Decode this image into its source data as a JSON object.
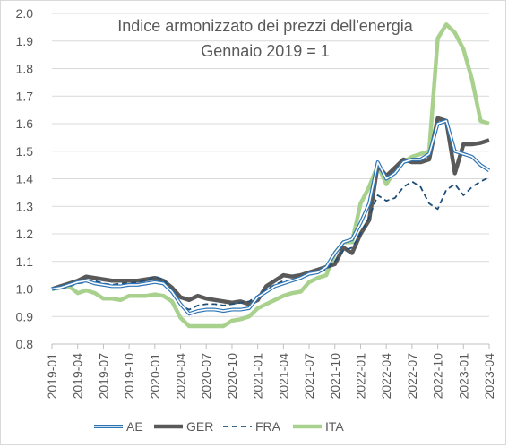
{
  "chart_data": {
    "type": "line",
    "title": "Indice armonizzato dei prezzi dell'energia",
    "subtitle": "Gennaio 2019 = 1",
    "xlabel": "",
    "ylabel": "",
    "ylim": [
      0.8,
      2.0
    ],
    "yticks": [
      "0.8",
      "0.9",
      "1.0",
      "1.1",
      "1.2",
      "1.3",
      "1.4",
      "1.5",
      "1.6",
      "1.7",
      "1.8",
      "1.9",
      "2.0"
    ],
    "x": [
      "2019-01",
      "2019-02",
      "2019-03",
      "2019-04",
      "2019-05",
      "2019-06",
      "2019-07",
      "2019-08",
      "2019-09",
      "2019-10",
      "2019-11",
      "2019-12",
      "2020-01",
      "2020-02",
      "2020-03",
      "2020-04",
      "2020-05",
      "2020-06",
      "2020-07",
      "2020-08",
      "2020-09",
      "2020-10",
      "2020-11",
      "2020-12",
      "2021-01",
      "2021-02",
      "2021-03",
      "2021-04",
      "2021-05",
      "2021-06",
      "2021-07",
      "2021-08",
      "2021-09",
      "2021-10",
      "2021-11",
      "2021-12",
      "2022-01",
      "2022-02",
      "2022-03",
      "2022-04",
      "2022-05",
      "2022-06",
      "2022-07",
      "2022-08",
      "2022-09",
      "2022-10",
      "2022-11",
      "2022-12",
      "2023-01",
      "2023-02",
      "2023-03",
      "2023-04"
    ],
    "xtick_labels": [
      "2019-01",
      "2019-04",
      "2019-07",
      "2019-10",
      "2020-01",
      "2020-04",
      "2020-07",
      "2020-10",
      "2021-01",
      "2021-04",
      "2021-07",
      "2021-10",
      "2022-01",
      "2022-04",
      "2022-07",
      "2022-10",
      "2023-01",
      "2023-04"
    ],
    "grid": true,
    "legend_position": "bottom",
    "series": [
      {
        "name": "AE",
        "color": "#2e75b6",
        "style": "double",
        "values": [
          1.0,
          1.005,
          1.015,
          1.025,
          1.03,
          1.02,
          1.015,
          1.01,
          1.01,
          1.015,
          1.015,
          1.02,
          1.025,
          1.02,
          0.99,
          0.945,
          0.91,
          0.92,
          0.925,
          0.925,
          0.92,
          0.925,
          0.925,
          0.93,
          0.97,
          0.99,
          1.01,
          1.02,
          1.03,
          1.04,
          1.055,
          1.06,
          1.08,
          1.13,
          1.17,
          1.18,
          1.24,
          1.31,
          1.46,
          1.4,
          1.42,
          1.46,
          1.47,
          1.47,
          1.49,
          1.6,
          1.61,
          1.5,
          1.49,
          1.48,
          1.45,
          1.43
        ]
      },
      {
        "name": "GER",
        "color": "#595959",
        "style": "solid",
        "values": [
          1.0,
          1.01,
          1.02,
          1.03,
          1.045,
          1.04,
          1.035,
          1.03,
          1.03,
          1.03,
          1.03,
          1.035,
          1.04,
          1.03,
          1.005,
          0.97,
          0.96,
          0.975,
          0.965,
          0.96,
          0.955,
          0.95,
          0.955,
          0.945,
          0.96,
          1.01,
          1.03,
          1.05,
          1.045,
          1.05,
          1.06,
          1.07,
          1.08,
          1.09,
          1.15,
          1.13,
          1.2,
          1.25,
          1.45,
          1.41,
          1.44,
          1.47,
          1.46,
          1.46,
          1.47,
          1.62,
          1.61,
          1.42,
          1.525,
          1.525,
          1.53,
          1.54
        ]
      },
      {
        "name": "FRA",
        "color": "#1f4e79",
        "style": "dashed",
        "values": [
          1.0,
          1.0,
          1.01,
          1.02,
          1.025,
          1.03,
          1.02,
          1.015,
          1.02,
          1.02,
          1.025,
          1.03,
          1.045,
          1.035,
          0.99,
          0.94,
          0.925,
          0.94,
          0.945,
          0.945,
          0.94,
          0.945,
          0.95,
          0.955,
          0.975,
          1.0,
          1.015,
          1.03,
          1.03,
          1.04,
          1.05,
          1.06,
          1.07,
          1.1,
          1.14,
          1.15,
          1.2,
          1.26,
          1.34,
          1.32,
          1.33,
          1.37,
          1.39,
          1.37,
          1.31,
          1.29,
          1.36,
          1.38,
          1.34,
          1.37,
          1.39,
          1.405
        ]
      },
      {
        "name": "ITA",
        "color": "#a9d18e",
        "style": "solid",
        "values": [
          1.0,
          1.005,
          1.01,
          0.985,
          0.995,
          0.985,
          0.965,
          0.965,
          0.96,
          0.975,
          0.975,
          0.975,
          0.98,
          0.975,
          0.955,
          0.895,
          0.865,
          0.865,
          0.865,
          0.865,
          0.865,
          0.885,
          0.89,
          0.9,
          0.93,
          0.945,
          0.96,
          0.975,
          0.985,
          0.99,
          1.025,
          1.04,
          1.05,
          1.13,
          1.17,
          1.17,
          1.31,
          1.37,
          1.45,
          1.38,
          1.43,
          1.46,
          1.48,
          1.49,
          1.5,
          1.91,
          1.96,
          1.93,
          1.87,
          1.76,
          1.61,
          1.6
        ]
      }
    ]
  }
}
